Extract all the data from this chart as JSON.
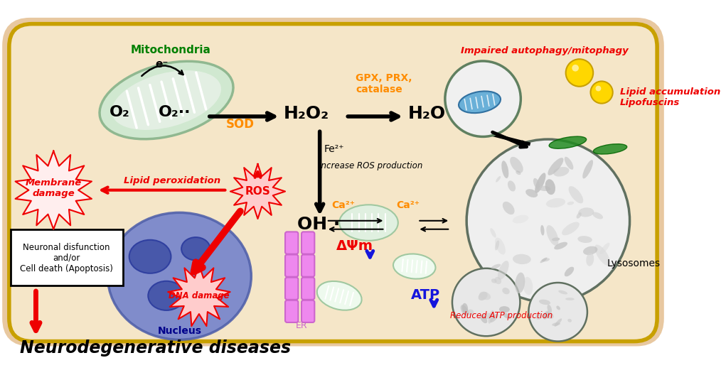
{
  "bg_cell_color": "#F5E6C8",
  "bg_cell_border_outer": "#C8A000",
  "bg_cell_border_inner": "#E8C060",
  "title_text": "Neurodegenerative diseases",
  "mitochondria_label": "Mitochondria",
  "mito_face": "#D8EDD8",
  "mito_edge": "#90B890",
  "o2_text": "O₂",
  "o2dot_text": "O₂··",
  "h2o2_text": "H₂O₂",
  "h2o_text": "H₂O",
  "sod_label": "SOD",
  "gpx_label": "GPX, PRX,\ncatalase",
  "fe_label": "Fe²⁺",
  "increase_ros": "Increase ROS production",
  "ros_label": "ROS",
  "oh_label": "OH ·",
  "membrane_damage_label": "Membrane\ndamage",
  "lipid_perox_label": "Lipid peroxidation",
  "neuronal_label": "Neuronal disfunction\nand/or\nCell death (Apoptosis)",
  "dna_damage_label": "DNA damage",
  "nucleus_label": "Nucleus",
  "er_label": "ER",
  "ca_label": "Ca²⁺",
  "delta_psi_label": "ΔΨm",
  "atp_label": "ATP",
  "reduced_atp_label": "Reduced ATP production",
  "lysosome_label": "Lysosomes",
  "impaired_label": "Impaired autophagy/mitophagy",
  "lipid_acc_label": "Lipid accumulation\nLipofuscins",
  "orange_color": "#FF8C00",
  "red_color": "#EE0000",
  "green_color": "#006400",
  "blue_color": "#1515DD",
  "black_color": "#000000",
  "pink_er": "#EE82EE",
  "lyso_face": "#E0E0E0",
  "lyso_edge": "#607060"
}
